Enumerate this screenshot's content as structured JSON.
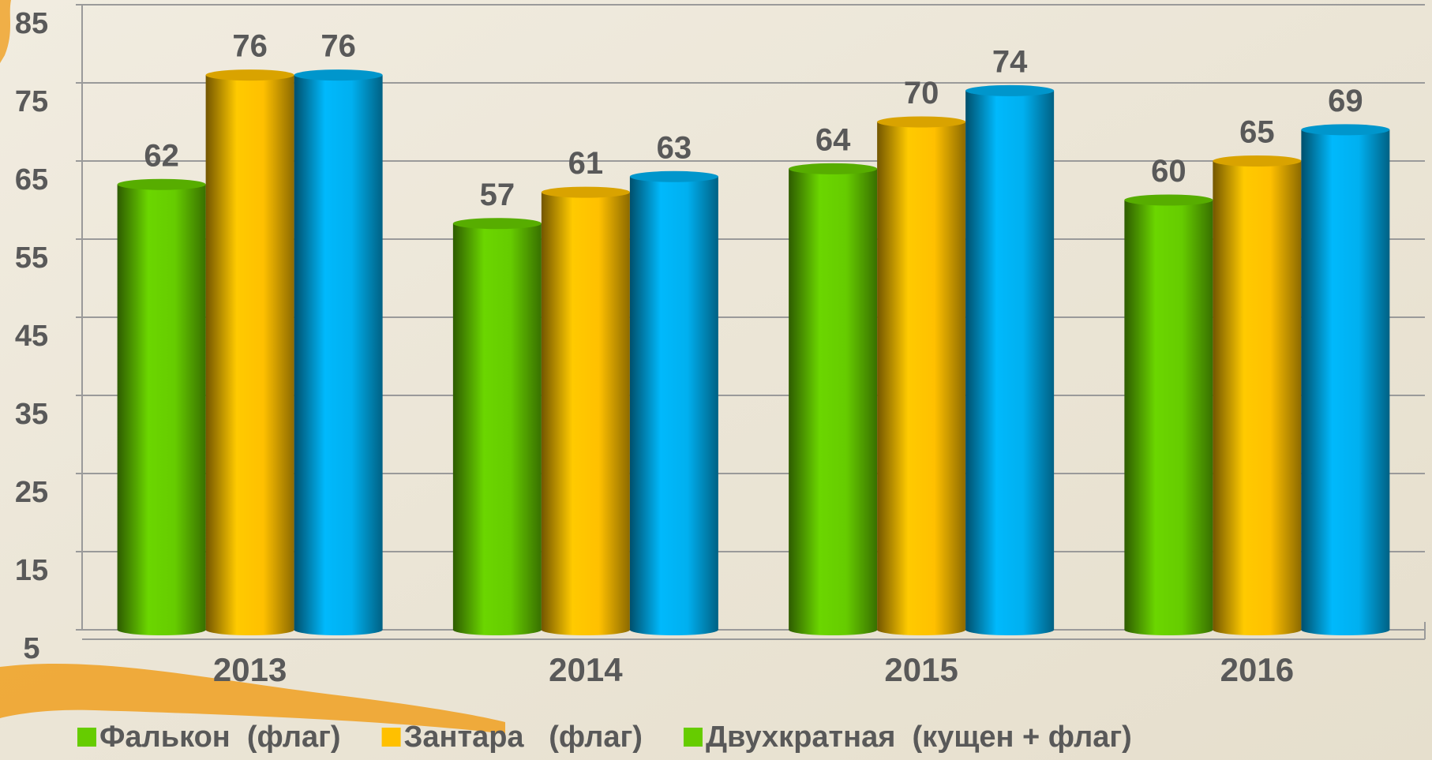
{
  "chart_data": {
    "type": "bar",
    "categories": [
      "2013",
      "2014",
      "2015",
      "2016"
    ],
    "series": [
      {
        "name": "Фалькон  (флаг)",
        "color": "#66cc00",
        "legend_color": "#66cc00",
        "values": [
          62,
          57,
          64,
          60
        ]
      },
      {
        "name": "Зантара   (флаг)",
        "color": "#ffc000",
        "legend_color": "#ffc000",
        "values": [
          76,
          61,
          70,
          65
        ]
      },
      {
        "name": "Двухкратная  (кущен + флаг)",
        "color": "#00b0f0",
        "legend_color": "#66cc00",
        "values": [
          76,
          63,
          74,
          69
        ]
      }
    ],
    "ylim": [
      5,
      85
    ],
    "yticks": [
      5,
      15,
      25,
      35,
      45,
      55,
      65,
      75,
      85
    ],
    "grid": true,
    "legend": "bottom"
  }
}
